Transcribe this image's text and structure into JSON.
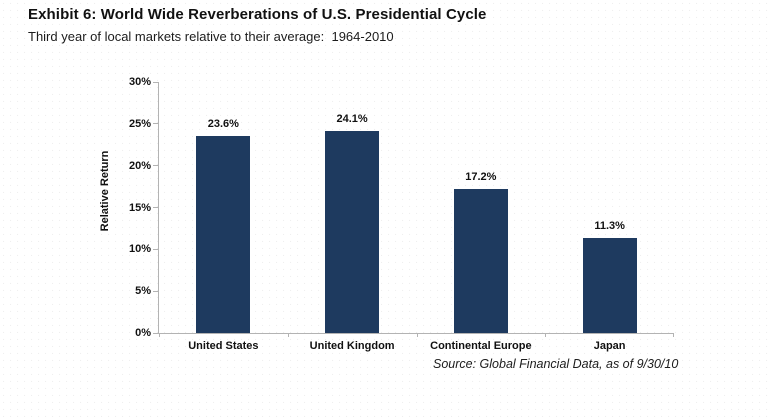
{
  "header": {
    "title": "Exhibit 6: World Wide Reverberations of U.S. Presidential Cycle",
    "subtitle": "Third year of local markets relative to their average:  1964-2010"
  },
  "chart_data": {
    "type": "bar",
    "title": "Exhibit 6: World Wide Reverberations of U.S. Presidential Cycle",
    "subtitle": "Third year of local markets relative to their average: 1964-2010",
    "categories": [
      "United States",
      "United Kingdom",
      "Continental Europe",
      "Japan"
    ],
    "values": [
      23.6,
      24.1,
      17.2,
      11.3
    ],
    "data_labels": [
      "23.6%",
      "24.1%",
      "17.2%",
      "11.3%"
    ],
    "xlabel": "",
    "ylabel": "Relative Return",
    "ylim": [
      0,
      30
    ],
    "ytick_step": 5,
    "ytick_labels": [
      "0%",
      "5%",
      "10%",
      "15%",
      "20%",
      "25%",
      "30%"
    ],
    "grid": false,
    "legend": "none",
    "bar_color": "#1e3a5f",
    "axis_color": "#b3b3b3",
    "source": "Source: Global Financial Data, as of 9/30/10"
  }
}
